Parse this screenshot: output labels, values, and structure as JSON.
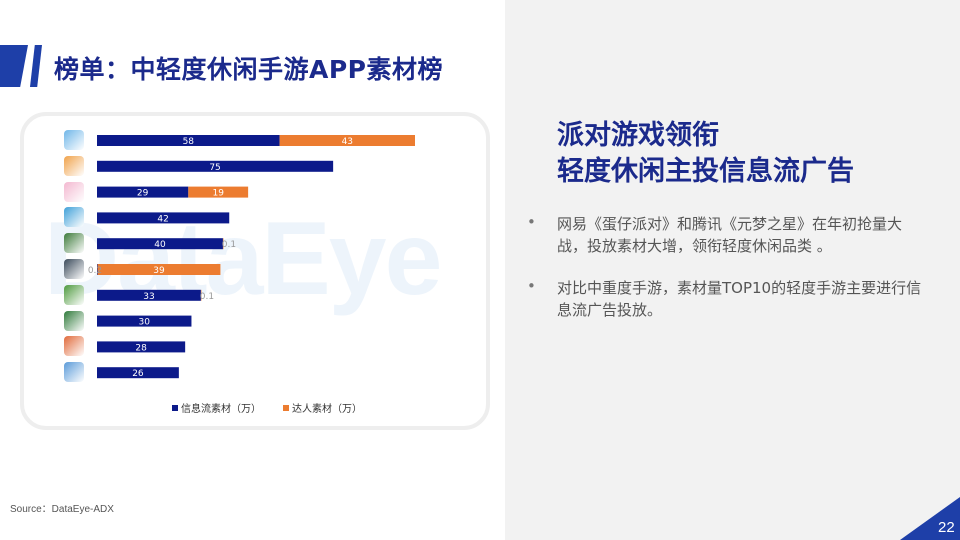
{
  "page": {
    "title": "榜单：中轻度休闲手游APP素材榜",
    "source": "Source：DataEye-ADX",
    "page_number": "22",
    "watermark": "DataEye"
  },
  "insight": {
    "headline_line1": "派对游戏领衔",
    "headline_line2": "轻度休闲主投信息流广告",
    "bullets": [
      "网易《蛋仔派对》和腾讯《元梦之星》在年初抢量大战，投放素材大增，领衔轻度休闲品类 。",
      "对比中重度手游，素材量TOP10的轻度手游主要进行信息流广告投放。"
    ],
    "bullet_symbol": "•"
  },
  "colors": {
    "brand_dark": "#1b2a8c",
    "series_info_flow": "#0c1a8a",
    "series_influencer": "#ec7c30",
    "right_panel_bg": "#f2f2f2"
  },
  "chart_data": {
    "type": "bar",
    "orientation": "horizontal",
    "stacked": true,
    "categories_icons": [
      "game-icon-1",
      "game-icon-2",
      "game-icon-3",
      "game-icon-4",
      "game-icon-5",
      "game-icon-6",
      "game-icon-7",
      "game-icon-8",
      "game-icon-9",
      "game-icon-10"
    ],
    "icon_colors": [
      "#6fb6e8",
      "#f0a24a",
      "#f3b8d0",
      "#3fa0d8",
      "#3c7a3a",
      "#3a4a5a",
      "#4e9a3e",
      "#2f7a3a",
      "#e06a3a",
      "#5a9ad8"
    ],
    "series": [
      {
        "name": "信息流素材（万）",
        "values": [
          58,
          75,
          29,
          42,
          40,
          0.2,
          33,
          30,
          28,
          26
        ]
      },
      {
        "name": "达人素材（万）",
        "values": [
          43,
          0,
          19,
          0,
          0.1,
          39,
          0.1,
          0,
          0,
          0
        ]
      }
    ],
    "data_labels": {
      "info_flow": [
        "58",
        "75",
        "29",
        "42",
        "40",
        "0.2",
        "33",
        "30",
        "28",
        "26"
      ],
      "influencer": [
        "43",
        "",
        "19",
        "",
        "0.1",
        "39",
        "0.1",
        "",
        "",
        ""
      ]
    },
    "xlim": [
      0,
      110
    ],
    "legend_position": "bottom",
    "grid": false
  }
}
